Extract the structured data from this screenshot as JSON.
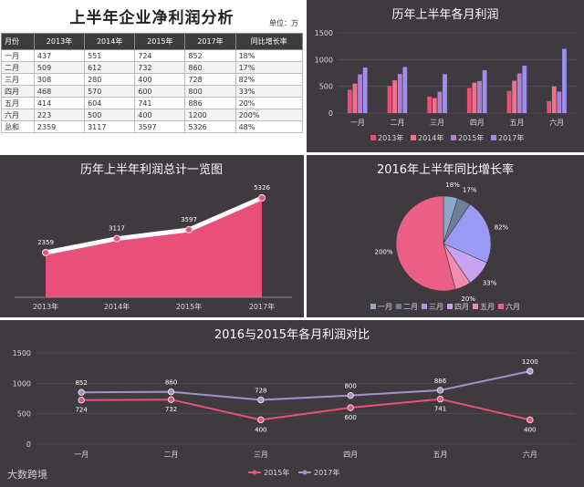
{
  "table": {
    "title": "上半年企业净利润分析",
    "unit": "单位：万",
    "headers": [
      "月份",
      "2013年",
      "2014年",
      "2015年",
      "2017年",
      "同比增长率"
    ],
    "rows": [
      [
        "一月",
        "437",
        "551",
        "724",
        "852",
        "18%"
      ],
      [
        "二月",
        "509",
        "612",
        "732",
        "860",
        "17%"
      ],
      [
        "三月",
        "308",
        "280",
        "400",
        "728",
        "82%"
      ],
      [
        "四月",
        "468",
        "570",
        "600",
        "800",
        "33%"
      ],
      [
        "五月",
        "414",
        "604",
        "741",
        "886",
        "20%"
      ],
      [
        "六月",
        "223",
        "500",
        "400",
        "1200",
        "200%"
      ],
      [
        "总和",
        "2359",
        "3117",
        "3597",
        "5326",
        "48%"
      ]
    ]
  },
  "chart_data": [
    {
      "type": "bar",
      "title": "历年上半年各月利润",
      "categories": [
        "一月",
        "二月",
        "三月",
        "四月",
        "五月",
        "六月"
      ],
      "series": [
        {
          "name": "2013年",
          "values": [
            437,
            509,
            308,
            468,
            414,
            223
          ]
        },
        {
          "name": "2014年",
          "values": [
            551,
            612,
            280,
            570,
            604,
            500
          ]
        },
        {
          "name": "2015年",
          "values": [
            724,
            732,
            400,
            600,
            741,
            400
          ]
        },
        {
          "name": "2017年",
          "values": [
            852,
            860,
            728,
            800,
            886,
            1200
          ]
        }
      ],
      "ylim": [
        0,
        1500
      ],
      "yticks": [
        0,
        500,
        1000,
        1500
      ],
      "grid": true,
      "legend": "bottom",
      "colors": [
        "#e8507a",
        "#f0708e",
        "#b07fd0",
        "#9b8ff0"
      ]
    },
    {
      "type": "area",
      "title": "历年上半年利润总计一览图",
      "categories": [
        "2013年",
        "2014年",
        "2015年",
        "2017年"
      ],
      "values": [
        2359,
        3117,
        3597,
        5326
      ],
      "labels": [
        "2359",
        "3117",
        "3597",
        "5326"
      ],
      "colors": [
        "#e8507a"
      ]
    },
    {
      "type": "pie",
      "title": "2016年上半年同比增长率",
      "categories": [
        "一月",
        "二月",
        "三月",
        "四月",
        "五月",
        "六月"
      ],
      "values": [
        18,
        17,
        82,
        33,
        20,
        200
      ],
      "labels": [
        "18%",
        "17%",
        "82%",
        "33%",
        "20%",
        "200%"
      ],
      "legend": "bottom",
      "colors": [
        "#8ea9c8",
        "#6f7f95",
        "#9b9bf5",
        "#c9a3f0",
        "#f58ab0",
        "#ec5f86"
      ]
    },
    {
      "type": "line",
      "title": "2016与2015年各月利润对比",
      "categories": [
        "一月",
        "二月",
        "三月",
        "四月",
        "五月",
        "六月"
      ],
      "series": [
        {
          "name": "2015年",
          "values": [
            724,
            732,
            400,
            600,
            741,
            400
          ]
        },
        {
          "name": "2017年",
          "values": [
            852,
            860,
            728,
            800,
            886,
            1200
          ]
        }
      ],
      "ylim": [
        0,
        1500
      ],
      "yticks": [
        0,
        500,
        1000,
        1500
      ],
      "grid": true,
      "legend": "bottom",
      "colors": [
        "#e8507a",
        "#a492c8"
      ]
    }
  ],
  "watermark": "大数跨境"
}
